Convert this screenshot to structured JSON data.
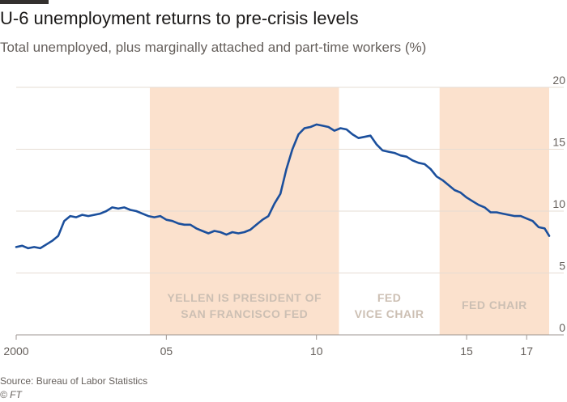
{
  "header": {
    "title": "U-6 unemployment returns to pre-crisis levels",
    "subtitle": "Total unemployed, plus marginally attached and part-time workers (%)"
  },
  "footer": {
    "source": "Source: Bureau of Labor Statistics",
    "credit": "© FT"
  },
  "colors": {
    "line": "#1b4f9c",
    "band": "#fbe1cd",
    "grid": "#e6dcd3",
    "band_text": "#ccbfb3"
  },
  "chart_data": {
    "type": "line",
    "title": "U-6 unemployment returns to pre-crisis levels",
    "subtitle": "Total unemployed, plus marginally attached and part-time workers (%)",
    "xlabel": "",
    "ylabel": "",
    "xlim": [
      2000,
      2017.75
    ],
    "ylim": [
      0,
      20
    ],
    "grid": true,
    "y_axis_side": "right",
    "x_ticks": [
      {
        "value": 2000,
        "label": "2000"
      },
      {
        "value": 2005,
        "label": "05"
      },
      {
        "value": 2010,
        "label": "10"
      },
      {
        "value": 2015,
        "label": "15"
      },
      {
        "value": 2017,
        "label": "17"
      }
    ],
    "y_ticks": [
      {
        "value": 0,
        "label": "0"
      },
      {
        "value": 5,
        "label": "5"
      },
      {
        "value": 10,
        "label": "10"
      },
      {
        "value": 15,
        "label": "15"
      },
      {
        "value": 20,
        "label": "20"
      }
    ],
    "bands": [
      {
        "start": 2004.45,
        "end": 2010.75,
        "lines": [
          "YELLEN IS PRESIDENT OF",
          "SAN FRANCISCO FED"
        ]
      },
      {
        "start": 2010.75,
        "end": 2014.1,
        "lines": [
          "FED",
          "VICE CHAIR"
        ],
        "unshaded": true
      },
      {
        "start": 2014.1,
        "end": 2017.75,
        "lines": [
          "FED CHAIR"
        ]
      }
    ],
    "series": [
      {
        "x": [
          2000,
          2000.2,
          2000.4,
          2000.6,
          2000.8,
          2001.0,
          2001.2,
          2001.4,
          2001.6,
          2001.8,
          2002.0,
          2002.2,
          2002.4,
          2002.6,
          2002.8,
          2003.0,
          2003.2,
          2003.4,
          2003.6,
          2003.8,
          2004.0,
          2004.2,
          2004.4,
          2004.6,
          2004.8,
          2005.0,
          2005.2,
          2005.4,
          2005.6,
          2005.8,
          2006.0,
          2006.2,
          2006.4,
          2006.6,
          2006.8,
          2007.0,
          2007.2,
          2007.4,
          2007.6,
          2007.8,
          2008.0,
          2008.2,
          2008.4,
          2008.6,
          2008.8,
          2009.0,
          2009.2,
          2009.4,
          2009.6,
          2009.8,
          2010.0,
          2010.2,
          2010.4,
          2010.6,
          2010.8,
          2011.0,
          2011.2,
          2011.4,
          2011.6,
          2011.8,
          2012.0,
          2012.2,
          2012.4,
          2012.6,
          2012.8,
          2013.0,
          2013.2,
          2013.4,
          2013.6,
          2013.8,
          2014.0,
          2014.2,
          2014.4,
          2014.6,
          2014.8,
          2015.0,
          2015.2,
          2015.4,
          2015.6,
          2015.8,
          2016.0,
          2016.2,
          2016.4,
          2016.6,
          2016.8,
          2017.0,
          2017.2,
          2017.4,
          2017.6,
          2017.75
        ],
        "y": [
          7.1,
          7.2,
          7.0,
          7.1,
          7.0,
          7.3,
          7.6,
          8.0,
          9.2,
          9.6,
          9.5,
          9.7,
          9.6,
          9.7,
          9.8,
          10.0,
          10.3,
          10.2,
          10.3,
          10.1,
          10.0,
          9.8,
          9.6,
          9.5,
          9.6,
          9.3,
          9.2,
          9.0,
          8.9,
          8.9,
          8.6,
          8.4,
          8.2,
          8.4,
          8.3,
          8.1,
          8.3,
          8.2,
          8.3,
          8.5,
          8.9,
          9.3,
          9.6,
          10.6,
          11.4,
          13.4,
          15.0,
          16.2,
          16.7,
          16.8,
          17.0,
          16.9,
          16.8,
          16.5,
          16.7,
          16.6,
          16.2,
          15.9,
          16.0,
          16.1,
          15.4,
          14.9,
          14.8,
          14.7,
          14.5,
          14.4,
          14.1,
          13.9,
          13.8,
          13.4,
          12.8,
          12.5,
          12.1,
          11.7,
          11.5,
          11.1,
          10.8,
          10.5,
          10.3,
          9.9,
          9.9,
          9.8,
          9.7,
          9.6,
          9.6,
          9.4,
          9.2,
          8.7,
          8.6,
          8.0
        ]
      }
    ]
  }
}
